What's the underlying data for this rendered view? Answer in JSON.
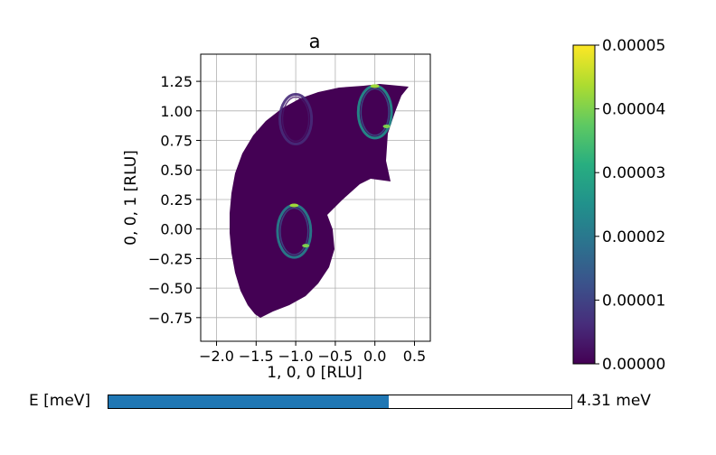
{
  "chart_data": {
    "type": "heatmap",
    "title": "a",
    "xlabel": "1, 0, 0 [RLU]",
    "ylabel": "0, 0, 1 [RLU]",
    "xlim": [
      -2.2,
      0.7
    ],
    "ylim": [
      -0.95,
      1.48
    ],
    "x_ticks": [
      "−2.0",
      "−1.5",
      "−1.0",
      "−0.5",
      "0.0",
      "0.5"
    ],
    "y_ticks": [
      "−0.75",
      "−0.50",
      "−0.25",
      "0.00",
      "0.25",
      "0.50",
      "0.75",
      "1.00",
      "1.25"
    ],
    "grid": true,
    "colormap": "viridis",
    "colorbar": {
      "min": 0.0,
      "max": 5e-05,
      "ticks": [
        "0.00000",
        "0.00001",
        "0.00002",
        "0.00003",
        "0.00004",
        "0.00005"
      ]
    },
    "features": [
      {
        "shape": "ring",
        "center_x": -1.02,
        "center_y": -0.02,
        "radius_x": 0.21,
        "radius_y": 0.22,
        "intensity": 2.2e-05
      },
      {
        "shape": "ring",
        "center_x": 0.0,
        "center_y": 0.99,
        "radius_x": 0.21,
        "radius_y": 0.22,
        "intensity": 2.5e-05
      },
      {
        "shape": "ring",
        "center_x": -1.0,
        "center_y": 0.93,
        "radius_x": 0.2,
        "radius_y": 0.21,
        "intensity": 6e-06
      }
    ]
  },
  "slider": {
    "label": "E [meV]",
    "value_text": "4.31 meV",
    "fraction": 0.605
  },
  "colors": {
    "background_region": "#440154",
    "slider_fill": "#1f77b4",
    "grid": "#b0b0b0"
  }
}
